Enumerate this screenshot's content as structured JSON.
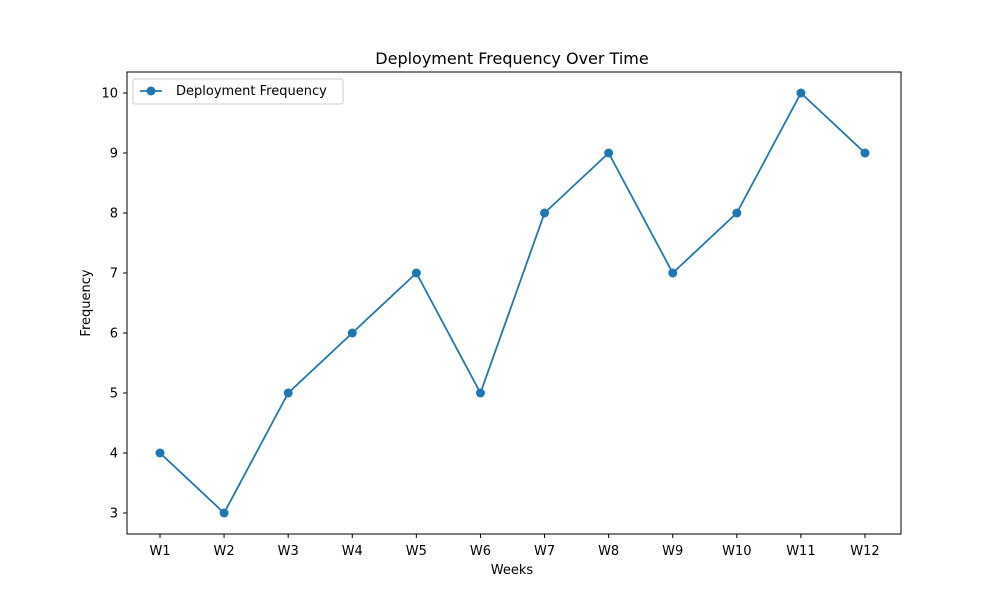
{
  "chart_data": {
    "type": "line",
    "title": "Deployment Frequency Over Time",
    "xlabel": "Weeks",
    "ylabel": "Frequency",
    "categories": [
      "W1",
      "W2",
      "W3",
      "W4",
      "W5",
      "W6",
      "W7",
      "W8",
      "W9",
      "W10",
      "W11",
      "W12"
    ],
    "series": [
      {
        "name": "Deployment Frequency",
        "values": [
          4,
          3,
          5,
          6,
          7,
          5,
          8,
          9,
          7,
          8,
          10,
          9
        ],
        "color": "#1f77b4",
        "marker": "circle"
      }
    ],
    "ylim": [
      2.65,
      10.35
    ],
    "yticks": [
      3,
      4,
      5,
      6,
      7,
      8,
      9,
      10
    ],
    "grid": false,
    "legend": "upper-left"
  }
}
